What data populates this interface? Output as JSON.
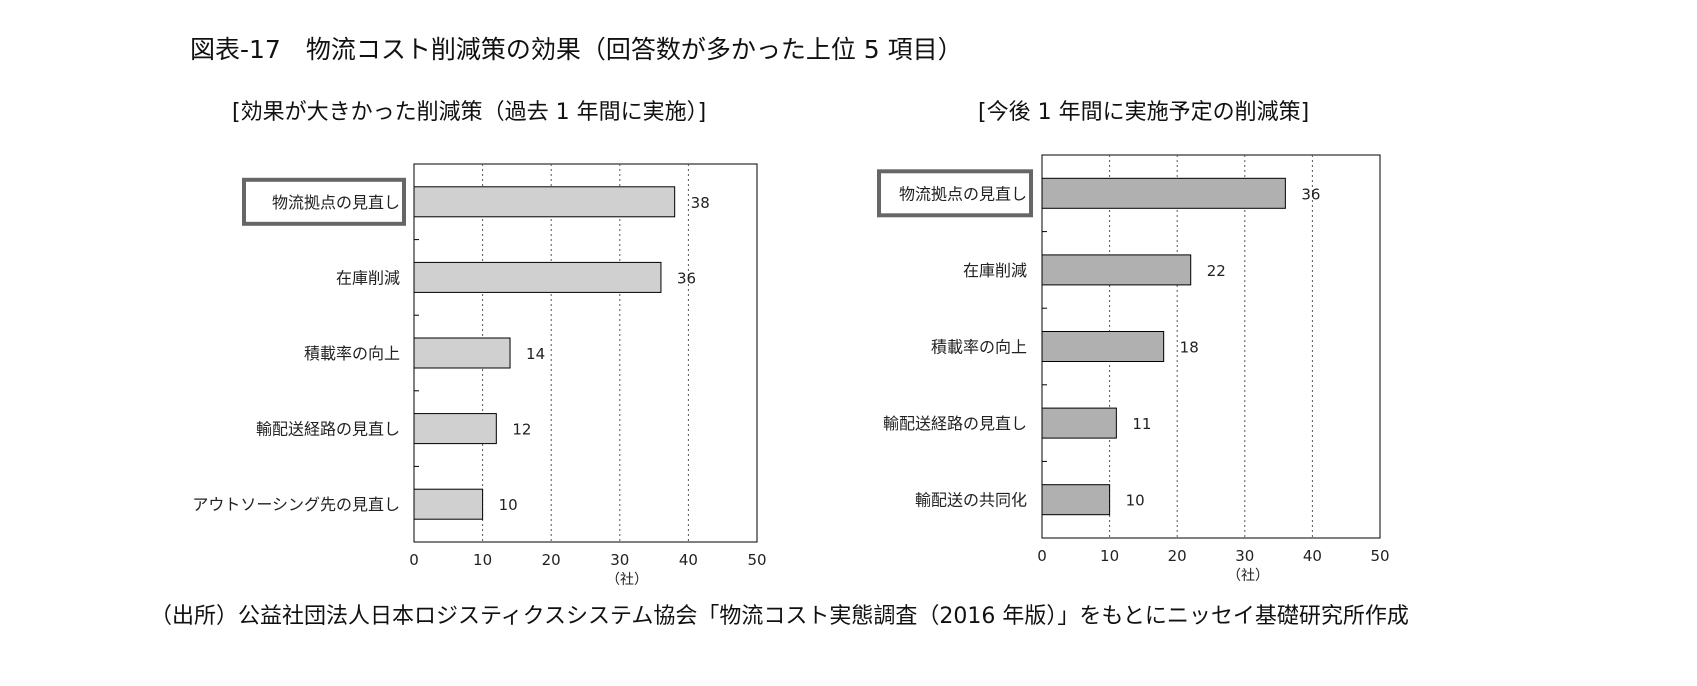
{
  "title": "図表-17　物流コスト削減策の効果（回答数が多かった上位 5 項目）",
  "source": "（出所）公益社団法人日本ロジスティクスシステム協会「物流コスト実態調査（2016 年版）」をもとにニッセイ基礎研究所作成",
  "chart_data": [
    {
      "type": "bar",
      "orientation": "horizontal",
      "title": "[効果が大きかった削減策（過去 1 年間に実施）]",
      "categories": [
        "物流拠点の見直し",
        "在庫削減",
        "積載率の向上",
        "輸配送経路の見直し",
        "アウトソーシング先の見直し"
      ],
      "values": [
        38,
        36,
        14,
        12,
        10
      ],
      "xlabel": "（社）",
      "xlim": [
        0,
        50
      ],
      "xticks": [
        0,
        10,
        20,
        30,
        40,
        50
      ],
      "grid": "vertical dotted",
      "bar_color": "#d0d0d0",
      "highlighted_category": "物流拠点の見直し"
    },
    {
      "type": "bar",
      "orientation": "horizontal",
      "title": "[今後 1 年間に実施予定の削減策]",
      "categories": [
        "物流拠点の見直し",
        "在庫削減",
        "積載率の向上",
        "輸配送経路の見直し",
        "輸配送の共同化"
      ],
      "values": [
        36,
        22,
        18,
        11,
        10
      ],
      "xlabel": "（社）",
      "xlim": [
        0,
        50
      ],
      "xticks": [
        0,
        10,
        20,
        30,
        40,
        50
      ],
      "grid": "vertical dotted",
      "bar_color": "#b0b0b0",
      "highlighted_category": "物流拠点の見直し"
    }
  ]
}
